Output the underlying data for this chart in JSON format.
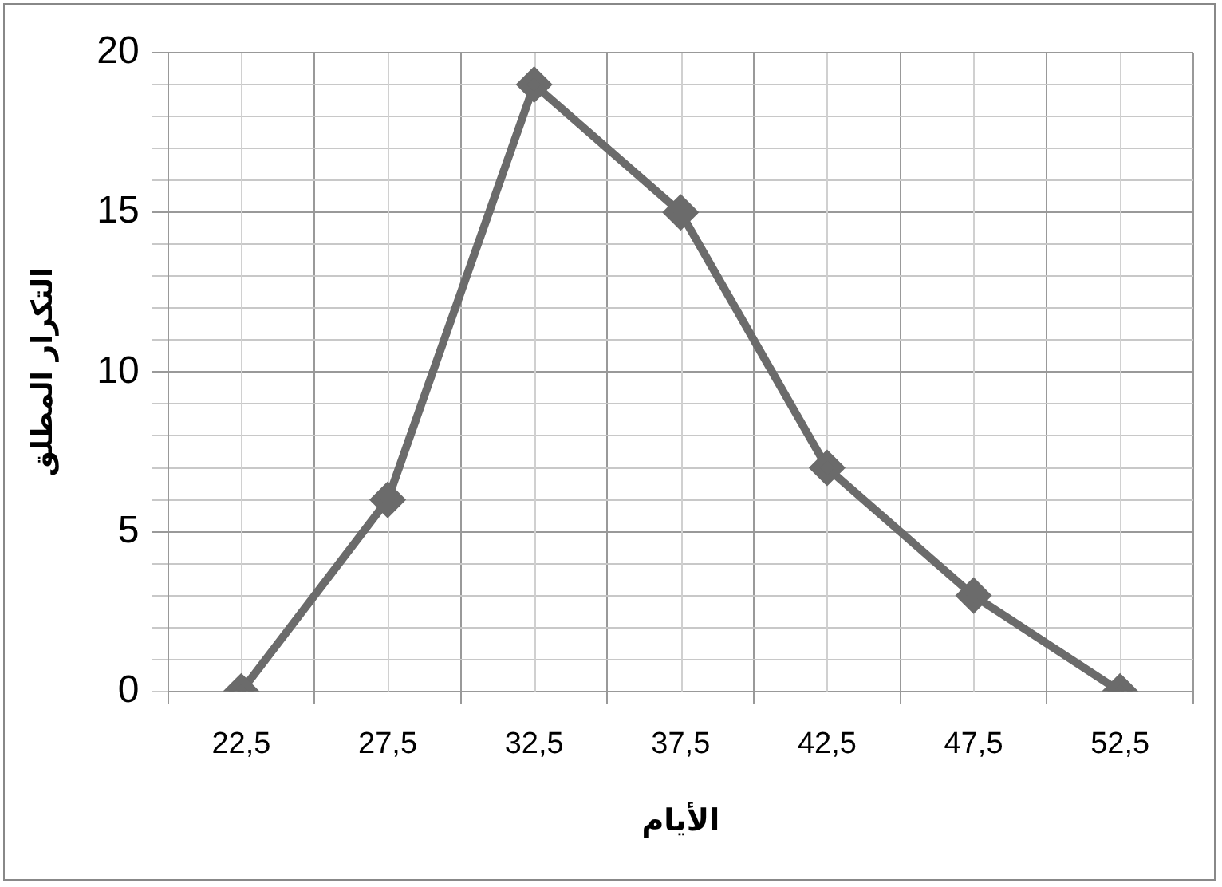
{
  "chart_data": {
    "type": "line",
    "xlabel": "الأيام",
    "ylabel": "التكرار المطلق",
    "categories": [
      "22,5",
      "27,5",
      "32,5",
      "37,5",
      "42,5",
      "47,5",
      "52,5"
    ],
    "series": [
      {
        "color": "#6b6b6b",
        "values": [
          0,
          6,
          19,
          15,
          7,
          3,
          0
        ]
      }
    ],
    "ylim": [
      0,
      20
    ],
    "yticks": [
      0,
      {
        "value": 1,
        "label": null
      },
      {
        "value": 2,
        "label": null
      },
      {
        "value": 3,
        "label": null
      },
      {
        "value": 4,
        "label": null
      },
      5,
      {
        "value": 6,
        "label": null
      },
      {
        "value": 7,
        "label": null
      },
      {
        "value": 8,
        "label": null
      },
      {
        "value": 9,
        "label": null
      },
      10,
      {
        "value": 11,
        "label": null
      },
      {
        "value": 12,
        "label": null
      },
      {
        "value": 13,
        "label": null
      },
      {
        "value": 14,
        "label": null
      },
      15,
      {
        "value": 16,
        "label": null
      },
      {
        "value": 17,
        "label": null
      },
      {
        "value": 18,
        "label": null
      },
      {
        "value": 19,
        "label": null
      },
      20
    ],
    "grid": true,
    "legend": false,
    "marker": "diamond",
    "line_style": "solid"
  }
}
